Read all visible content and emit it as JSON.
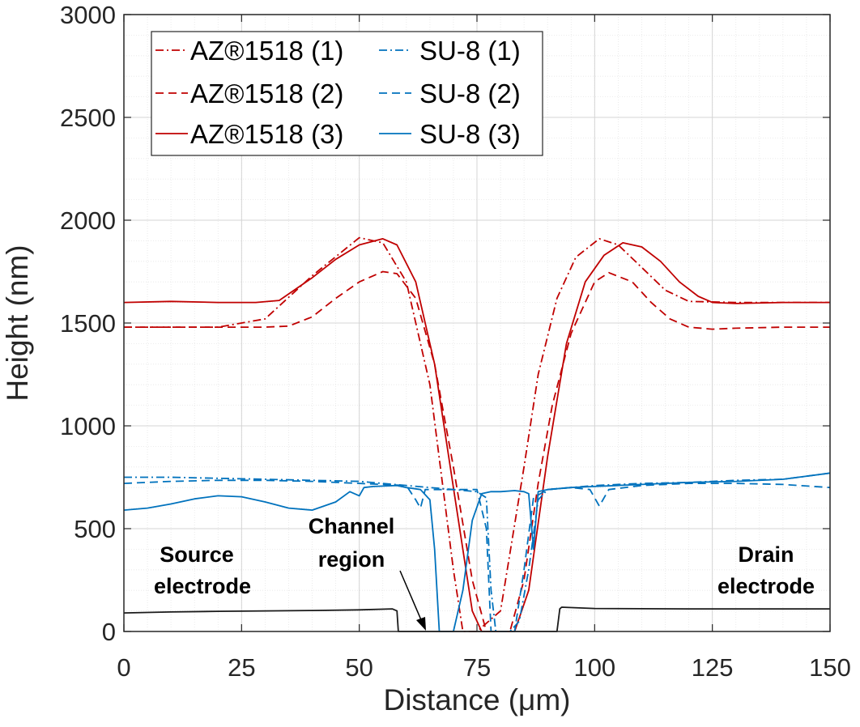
{
  "chart_data": {
    "type": "line",
    "title": "",
    "xlabel": "Distance (μm)",
    "ylabel": "Height (nm)",
    "xlim": [
      0,
      150
    ],
    "ylim": [
      0,
      3000
    ],
    "xticks": [
      0,
      25,
      50,
      75,
      100,
      125,
      150
    ],
    "yticks": [
      0,
      500,
      1000,
      1500,
      2000,
      2500,
      3000
    ],
    "grid": "on (major and minor)",
    "legend_position": "top-left, two columns",
    "colors": {
      "az": "#c00000",
      "su8": "#0072bd",
      "electrode": "#1a1a1a"
    },
    "series": [
      {
        "name": "AZ®1518 (1)",
        "color": "#c00000",
        "style": "dashdot",
        "x": [
          0,
          10,
          20,
          30,
          40,
          50,
          55,
          60,
          65,
          70,
          72,
          75,
          80,
          85,
          88,
          92,
          96,
          101,
          105,
          110,
          115,
          120,
          130,
          140,
          150
        ],
        "y": [
          1480,
          1480,
          1480,
          1520,
          1730,
          1915,
          1890,
          1700,
          1200,
          300,
          0,
          0,
          100,
          800,
          1250,
          1620,
          1820,
          1910,
          1880,
          1770,
          1660,
          1605,
          1600,
          1600,
          1600
        ]
      },
      {
        "name": "AZ®1518 (2)",
        "color": "#c00000",
        "style": "dashed",
        "x": [
          0,
          10,
          20,
          30,
          35,
          40,
          45,
          50,
          55,
          58,
          62,
          66,
          70,
          74,
          77,
          80,
          82,
          85,
          88,
          91,
          95,
          100,
          103,
          108,
          112,
          116,
          120,
          125,
          130,
          140,
          150
        ],
        "y": [
          1480,
          1480,
          1480,
          1480,
          1485,
          1530,
          1620,
          1700,
          1750,
          1740,
          1620,
          1300,
          800,
          250,
          0,
          0,
          0,
          250,
          720,
          1100,
          1450,
          1700,
          1745,
          1700,
          1600,
          1520,
          1480,
          1470,
          1475,
          1480,
          1480
        ]
      },
      {
        "name": "AZ®1518 (3)",
        "color": "#c00000",
        "style": "solid",
        "x": [
          0,
          10,
          20,
          28,
          33,
          40,
          45,
          50,
          55,
          58,
          62,
          66,
          70,
          74,
          76,
          80,
          83,
          86,
          90,
          94,
          98,
          102,
          106,
          110,
          114,
          118,
          122,
          125,
          130,
          140,
          150
        ],
        "y": [
          1600,
          1605,
          1600,
          1600,
          1610,
          1720,
          1810,
          1880,
          1910,
          1880,
          1700,
          1300,
          700,
          100,
          0,
          0,
          0,
          200,
          850,
          1400,
          1700,
          1830,
          1890,
          1870,
          1800,
          1700,
          1630,
          1600,
          1595,
          1600,
          1600
        ]
      },
      {
        "name": "SU-8 (1)",
        "color": "#0072bd",
        "style": "dashdot",
        "x": [
          0,
          10,
          20,
          30,
          40,
          50,
          60,
          70,
          75,
          77,
          78,
          79,
          82,
          84,
          86,
          88,
          90,
          95,
          100,
          110,
          120,
          130,
          140,
          150
        ],
        "y": [
          750,
          750,
          745,
          740,
          735,
          730,
          710,
          690,
          680,
          650,
          200,
          0,
          0,
          50,
          300,
          640,
          690,
          700,
          710,
          720,
          725,
          735,
          740,
          770
        ]
      },
      {
        "name": "SU-8 (2)",
        "color": "#0072bd",
        "style": "dashed",
        "x": [
          0,
          10,
          20,
          30,
          40,
          50,
          60,
          62,
          63,
          64,
          70,
          75,
          77,
          78,
          80,
          83,
          85,
          87,
          90,
          95,
          99,
          101,
          103,
          110,
          120,
          130,
          140,
          150
        ],
        "y": [
          720,
          730,
          735,
          735,
          730,
          720,
          710,
          640,
          600,
          690,
          690,
          690,
          500,
          0,
          0,
          0,
          300,
          650,
          690,
          700,
          690,
          610,
          690,
          710,
          720,
          720,
          715,
          700
        ]
      },
      {
        "name": "SU-8 (3)",
        "color": "#0072bd",
        "style": "solid",
        "x": [
          0,
          5,
          10,
          15,
          20,
          25,
          30,
          35,
          40,
          45,
          48,
          50,
          51,
          53,
          58,
          60,
          63,
          65,
          66,
          67,
          68,
          69,
          70,
          72,
          74,
          76,
          78,
          80,
          83,
          85,
          86,
          87,
          88,
          90,
          95,
          100,
          110,
          120,
          130,
          140,
          150
        ],
        "y": [
          590,
          600,
          620,
          645,
          660,
          655,
          630,
          600,
          590,
          630,
          680,
          660,
          700,
          705,
          710,
          700,
          690,
          640,
          400,
          0,
          0,
          0,
          0,
          200,
          540,
          670,
          680,
          680,
          685,
          680,
          670,
          400,
          680,
          690,
          700,
          705,
          715,
          725,
          730,
          740,
          770
        ]
      },
      {
        "name": "",
        "color": "#1a1a1a",
        "style": "solid",
        "x": [
          0,
          10,
          20,
          30,
          40,
          50,
          57,
          58,
          58.3,
          70,
          80,
          92,
          92.6,
          93,
          100,
          120,
          140,
          150
        ],
        "y": [
          90,
          95,
          98,
          100,
          102,
          105,
          110,
          100,
          0,
          0,
          0,
          0,
          110,
          118,
          112,
          110,
          110,
          110
        ]
      }
    ],
    "annotations": {
      "source": [
        "Source",
        "electrode"
      ],
      "channel": [
        "Channel",
        "region"
      ],
      "drain": [
        "Drain",
        "electrode"
      ]
    }
  }
}
